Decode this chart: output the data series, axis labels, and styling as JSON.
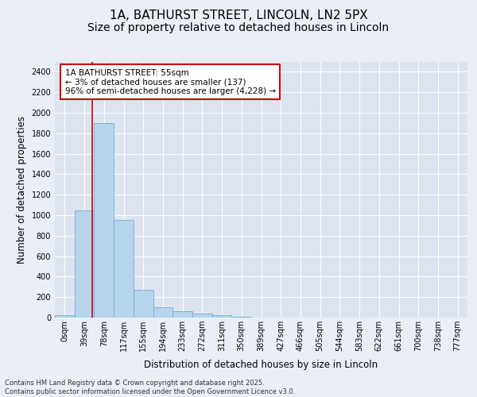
{
  "title_line1": "1A, BATHURST STREET, LINCOLN, LN2 5PX",
  "title_line2": "Size of property relative to detached houses in Lincoln",
  "xlabel": "Distribution of detached houses by size in Lincoln",
  "ylabel": "Number of detached properties",
  "categories": [
    "0sqm",
    "39sqm",
    "78sqm",
    "117sqm",
    "155sqm",
    "194sqm",
    "233sqm",
    "272sqm",
    "311sqm",
    "350sqm",
    "389sqm",
    "427sqm",
    "466sqm",
    "505sqm",
    "544sqm",
    "583sqm",
    "622sqm",
    "661sqm",
    "700sqm",
    "738sqm",
    "777sqm"
  ],
  "values": [
    20,
    1050,
    1900,
    950,
    270,
    100,
    60,
    35,
    20,
    8,
    3,
    1,
    0,
    0,
    0,
    0,
    0,
    0,
    0,
    0,
    0
  ],
  "bar_color": "#b8d4ea",
  "bar_edge_color": "#6baed6",
  "ylim": [
    0,
    2500
  ],
  "yticks": [
    0,
    200,
    400,
    600,
    800,
    1000,
    1200,
    1400,
    1600,
    1800,
    2000,
    2200,
    2400
  ],
  "vline_x": 1.41,
  "vline_color": "#cc0000",
  "annotation_text": "1A BATHURST STREET: 55sqm\n← 3% of detached houses are smaller (137)\n96% of semi-detached houses are larger (4,228) →",
  "annotation_box_color": "#cc0000",
  "footer_text": "Contains HM Land Registry data © Crown copyright and database right 2025.\nContains public sector information licensed under the Open Government Licence v3.0.",
  "bg_color": "#eaeff7",
  "plot_bg_color": "#dde4f0",
  "grid_color": "#ffffff",
  "title1_fontsize": 11,
  "title2_fontsize": 10,
  "axis_label_fontsize": 8.5,
  "tick_fontsize": 7,
  "ann_fontsize": 7.5,
  "footer_fontsize": 6
}
